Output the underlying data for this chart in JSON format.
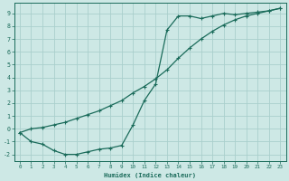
{
  "xlabel": "Humidex (Indice chaleur)",
  "ylabel": "",
  "bg_color": "#cde8e5",
  "grid_color": "#aacfcc",
  "line_color": "#1a6b5a",
  "xlim": [
    -0.5,
    23.5
  ],
  "ylim": [
    -2.5,
    9.8
  ],
  "xticks": [
    0,
    1,
    2,
    3,
    4,
    5,
    6,
    7,
    8,
    9,
    10,
    11,
    12,
    13,
    14,
    15,
    16,
    17,
    18,
    19,
    20,
    21,
    22,
    23
  ],
  "yticks": [
    -2,
    -1,
    0,
    1,
    2,
    3,
    4,
    5,
    6,
    7,
    8,
    9
  ],
  "line1_x": [
    0,
    1,
    2,
    3,
    4,
    5,
    6,
    7,
    8,
    9,
    10,
    11,
    12,
    13,
    14,
    15,
    16,
    17,
    18,
    19,
    20,
    21,
    22,
    23
  ],
  "line1_y": [
    -0.3,
    -1.0,
    -1.2,
    -1.7,
    -2.0,
    -2.0,
    -1.8,
    -1.6,
    -1.5,
    -1.3,
    0.3,
    2.2,
    3.5,
    7.7,
    8.8,
    8.8,
    8.6,
    8.8,
    9.0,
    8.9,
    9.0,
    9.1,
    9.2,
    9.4
  ],
  "line2_x": [
    0,
    1,
    2,
    3,
    4,
    5,
    6,
    7,
    8,
    9,
    10,
    11,
    12,
    13,
    14,
    15,
    16,
    17,
    18,
    19,
    20,
    21,
    22,
    23
  ],
  "line2_y": [
    -0.3,
    0.0,
    0.1,
    0.3,
    0.5,
    0.8,
    1.1,
    1.4,
    1.8,
    2.2,
    2.8,
    3.3,
    3.9,
    4.6,
    5.5,
    6.3,
    7.0,
    7.6,
    8.1,
    8.5,
    8.8,
    9.0,
    9.2,
    9.4
  ],
  "marker": "+",
  "markersize": 3.5,
  "linewidth": 0.9
}
